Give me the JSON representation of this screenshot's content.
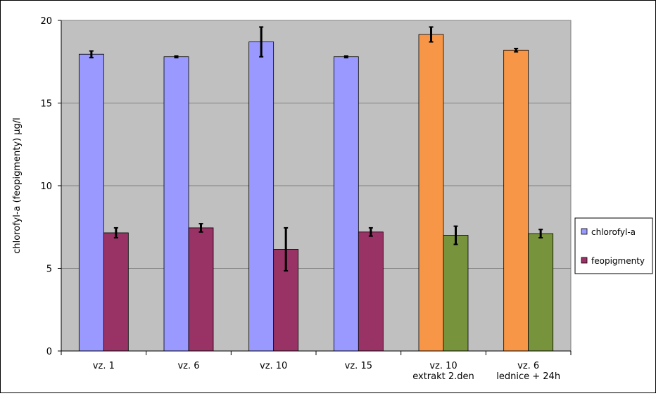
{
  "chart_data": {
    "type": "bar",
    "title": "",
    "xlabel": "",
    "ylabel": "chlorofyl-a (feopigmenty) µg/l",
    "ylim": [
      0,
      20
    ],
    "yticks": [
      0,
      5,
      10,
      15,
      20
    ],
    "grid": true,
    "legend_position": "right",
    "categories": [
      [
        "vz. 1"
      ],
      [
        "vz. 6"
      ],
      [
        "vz. 10"
      ],
      [
        "vz. 15"
      ],
      [
        "vz. 10",
        "extrakt 2.den"
      ],
      [
        "vz. 6",
        "lednice + 24h"
      ]
    ],
    "series": [
      {
        "name": "chlorofyl-a",
        "color": "#9999ff",
        "values": [
          17.95,
          17.8,
          18.7,
          17.8,
          19.15,
          18.2
        ],
        "errors": [
          0.2,
          0.05,
          0.9,
          0.05,
          0.45,
          0.1
        ],
        "bar_colors": [
          "#9999ff",
          "#9999ff",
          "#9999ff",
          "#9999ff",
          "#f79646",
          "#f79646"
        ]
      },
      {
        "name": "feopigmenty",
        "color": "#993366",
        "values": [
          7.15,
          7.45,
          6.15,
          7.2,
          7.0,
          7.1
        ],
        "errors": [
          0.3,
          0.25,
          1.3,
          0.25,
          0.55,
          0.25
        ],
        "bar_colors": [
          "#993366",
          "#993366",
          "#993366",
          "#993366",
          "#77933c",
          "#77933c"
        ]
      }
    ]
  },
  "colors": {
    "plot_background": "#c0c0c0",
    "gridline": "#808080",
    "error_bar": "#000000"
  }
}
